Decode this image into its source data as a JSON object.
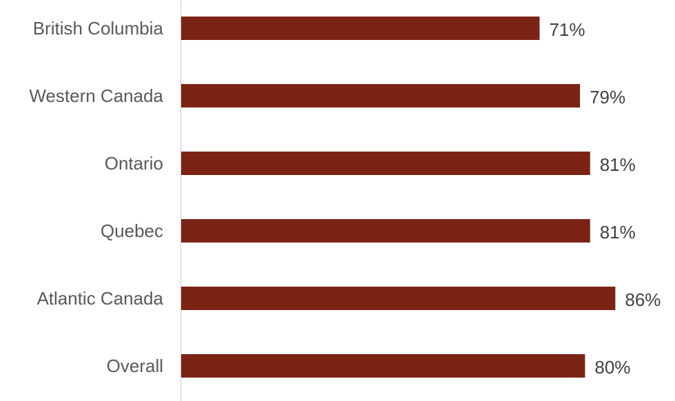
{
  "chart_data": {
    "type": "bar",
    "orientation": "horizontal",
    "categories": [
      "British Columbia",
      "Western Canada",
      "Ontario",
      "Quebec",
      "Atlantic Canada",
      "Overall"
    ],
    "values": [
      71,
      79,
      81,
      81,
      86,
      80
    ],
    "data_labels": [
      "71%",
      "79%",
      "81%",
      "81%",
      "86%",
      "80%"
    ],
    "title": "",
    "xlabel": "",
    "ylabel": "",
    "xlim": [
      0,
      100
    ],
    "grid": false,
    "legend": "none",
    "bar_color": "#7B2416",
    "axis_color": "#D9D9D9"
  }
}
